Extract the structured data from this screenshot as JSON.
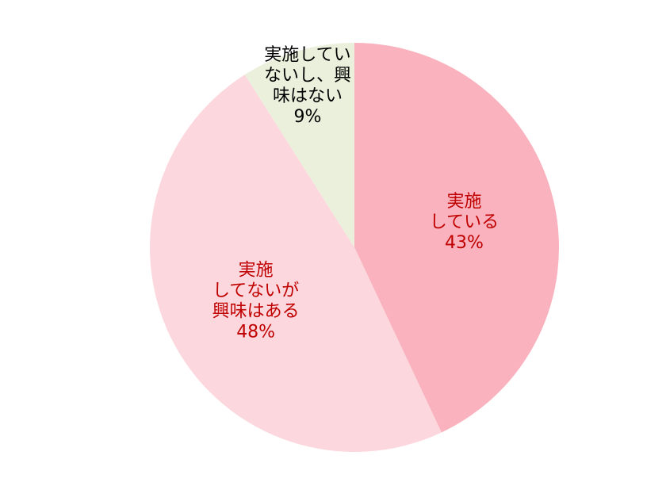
{
  "chart_data": {
    "type": "pie",
    "categories": [
      [
        "実施",
        "している"
      ],
      [
        "実施",
        "してないが",
        "興味はある"
      ],
      [
        "実施してい",
        "ないし、興",
        "味はない"
      ]
    ],
    "values": [
      43,
      48,
      9
    ],
    "value_labels": [
      "43%",
      "48%",
      "9%"
    ],
    "colors": [
      "#f9b2be",
      "#fcd8de",
      "#ebf0dc"
    ],
    "label_colors": [
      "#c00000",
      "#c00000",
      "#000000"
    ]
  }
}
